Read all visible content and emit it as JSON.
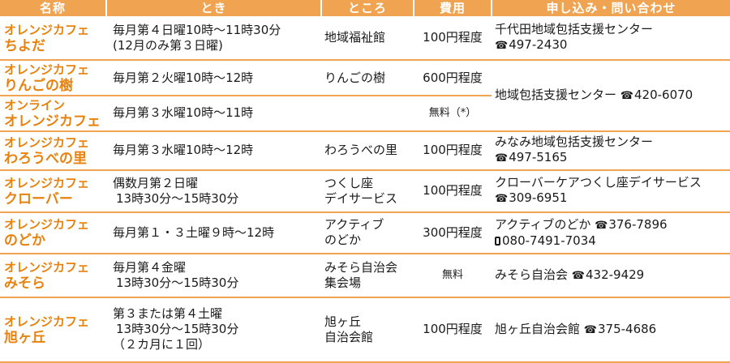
{
  "headers": {
    "name": "名称",
    "when": "とき",
    "where": "ところ",
    "fee": "費用",
    "contact": "申し込み・問い合わせ"
  },
  "rows": [
    {
      "name1": "オレンジカフェ",
      "name2": "ちよだ",
      "when1": "毎月第４日曜10時～11時30分",
      "when2": "(12月のみ第３日曜)",
      "where1": "地域福祉館",
      "fee": "100円程度",
      "contact1": "千代田地域包括支援センター",
      "tel1": "497-2430"
    },
    {
      "name1": "オレンジカフェ",
      "name2": "りんごの樹",
      "when1": "毎月第２火曜10時～12時",
      "where1": "りんごの樹",
      "fee": "600円程度",
      "contact1": "地域包括支援センター",
      "tel1": "420-6070"
    },
    {
      "name1": "オンライン",
      "name2": "オレンジカフェ",
      "when1": "毎月第３水曜10時～11時",
      "fee": "無料（*）"
    },
    {
      "name1": "オレンジカフェ",
      "name2": "わろうべの里",
      "when1": "毎月第３水曜10時～12時",
      "where1": "わろうべの里",
      "fee": "100円程度",
      "contact1": "みなみ地域包括支援センター",
      "tel1": "497-5165"
    },
    {
      "name1": "オレンジカフェ",
      "name2": "クローバー",
      "when1": "偶数月第２日曜",
      "when2": "13時30分～15時30分",
      "where1": "つくし座",
      "where2": "デイサービス",
      "fee": "100円程度",
      "contact1": "クローバーケアつくし座デイサービス",
      "tel1": "309-6951"
    },
    {
      "name1": "オレンジカフェ",
      "name2": "のどか",
      "when1": "毎月第１・３土曜９時～12時",
      "where1": "アクティブ",
      "where2": "のどか",
      "fee": "300円程度",
      "contact1": "アクティブのどか",
      "tel1": "376-7896",
      "mobile": "080-7491-7034"
    },
    {
      "name1": "オレンジカフェ",
      "name2": "みそら",
      "when1": "毎月第４金曜",
      "when2": "13時30分～15時30分",
      "where1": "みそら自治会",
      "where2": "集会場",
      "fee": "無料",
      "contact1": "みそら自治会",
      "tel1": "432-9429"
    },
    {
      "name1": "オレンジカフェ",
      "name2": "旭ヶ丘",
      "when1": "第３または第４土曜",
      "when2": "13時30分～15時30分",
      "when3": "（２カ月に１回）",
      "where1": "旭ヶ丘",
      "where2": "自治会館",
      "fee": "100円程度",
      "contact1": "旭ヶ丘自治会館",
      "tel1": "375-4686"
    }
  ],
  "icons": {
    "tel": "telephone-icon",
    "mobile": "mobile-phone-icon"
  },
  "colors": {
    "accent": "#f0a451",
    "name_text": "#e8820e"
  }
}
